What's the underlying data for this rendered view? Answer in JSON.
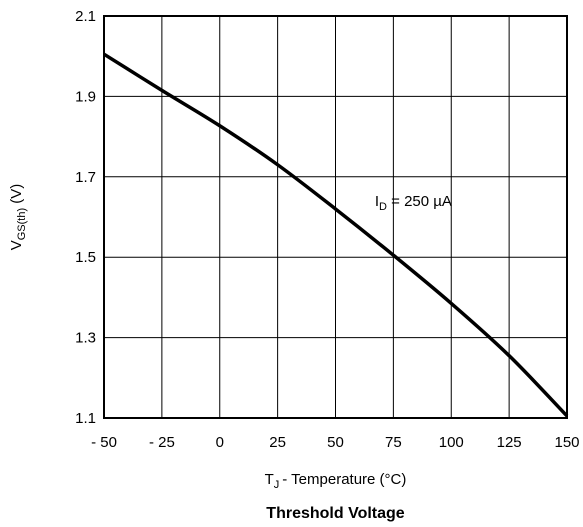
{
  "chart_data": {
    "type": "line",
    "title": "Threshold Voltage",
    "xlabel": {
      "main": "T",
      "sub": "J",
      "rest": "- Temperature (°C)"
    },
    "ylabel": {
      "main": "V",
      "sub": "GS(th)",
      "rest": " (V)"
    },
    "xlim": [
      -50,
      150
    ],
    "ylim": [
      1.1,
      2.1
    ],
    "x_ticks": [
      -50,
      -25,
      0,
      25,
      50,
      75,
      100,
      125,
      150
    ],
    "x_tick_labels": [
      "- 50",
      "- 25",
      "0",
      "25",
      "50",
      "75",
      "100",
      "125",
      "150"
    ],
    "y_ticks": [
      1.1,
      1.3,
      1.5,
      1.7,
      1.9,
      2.1
    ],
    "y_tick_labels": [
      "1.1",
      "1.3",
      "1.5",
      "1.7",
      "1.9",
      "2.1"
    ],
    "grid": true,
    "series": [
      {
        "x": [
          -50,
          -25,
          0,
          25,
          50,
          75,
          100,
          125,
          150
        ],
        "y": [
          2.005,
          1.915,
          1.827,
          1.73,
          1.62,
          1.505,
          1.385,
          1.255,
          1.105
        ]
      }
    ],
    "annotation": {
      "main": "I",
      "sub": "D",
      "rest": " = 250 µA",
      "x": 67,
      "y": 1.64
    }
  }
}
